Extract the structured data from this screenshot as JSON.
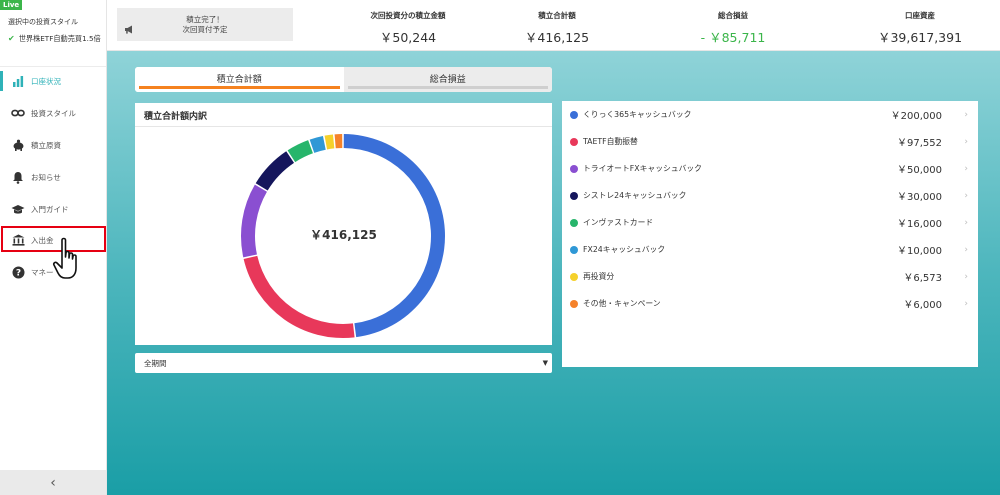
{
  "sidebar": {
    "live_badge": "Live",
    "selected_style_caption": "選択中の投資スタイル",
    "selected_style_name": "世界株ETF自動売買1.5倍",
    "collapse_icon": "chevron-left-icon",
    "items": [
      {
        "label": "口座状況",
        "icon": "bar-chart-icon",
        "active": true
      },
      {
        "label": "投資スタイル",
        "icon": "infinity-icon",
        "active": false
      },
      {
        "label": "積立原資",
        "icon": "piggy-bank-icon",
        "active": false
      },
      {
        "label": "お知らせ",
        "icon": "bell-icon",
        "active": false
      },
      {
        "label": "入門ガイド",
        "icon": "graduation-cap-icon",
        "active": false
      },
      {
        "label": "入出金",
        "icon": "bank-icon",
        "active": false
      },
      {
        "label": "マネー",
        "icon": "help-circle-icon",
        "active": false
      }
    ]
  },
  "header": {
    "notice_line1": "積立完了！",
    "notice_line2": "次回買付予定",
    "next_investment_label": "次回投資分の積立金額",
    "next_investment_value": "￥50,244",
    "total_savings_label": "積立合計額",
    "total_savings_value": "￥416,125",
    "total_pnl_label": "総合損益",
    "total_pnl_value": "- ￥85,711",
    "account_assets_label": "口座資産",
    "account_assets_value": "￥39,617,391"
  },
  "tabs": {
    "total_savings": "積立合計額",
    "total_pnl": "総合損益"
  },
  "chart_card": {
    "title": "積立合計額内訳",
    "center_value": "￥416,125"
  },
  "period_select": {
    "value": "全期間"
  },
  "chart_data": {
    "type": "pie",
    "categories": [
      "くりっく365キャッシュバック",
      "TAETF自動振替",
      "トライオートFXキャッシュバック",
      "シストレ24キャッシュバック",
      "インヴァストカード",
      "FX24キャッシュバック",
      "再投資分",
      "その他・キャンペーン"
    ],
    "values": [
      200000,
      97552,
      50000,
      30000,
      16000,
      10000,
      6573,
      6000
    ],
    "colors": [
      "#3a6fd8",
      "#e8385a",
      "#8a4fd1",
      "#15165c",
      "#27b56b",
      "#2f98d6",
      "#f5d12b",
      "#f5822a"
    ]
  },
  "breakdown": [
    {
      "name": "くりっく365キャッシュバック",
      "amount": "￥200,000",
      "color": "#3a6fd8"
    },
    {
      "name": "TAETF自動振替",
      "amount": "￥97,552",
      "color": "#e8385a"
    },
    {
      "name": "トライオートFXキャッシュバック",
      "amount": "￥50,000",
      "color": "#8a4fd1"
    },
    {
      "name": "シストレ24キャッシュバック",
      "amount": "￥30,000",
      "color": "#15165c"
    },
    {
      "name": "インヴァストカード",
      "amount": "￥16,000",
      "color": "#27b56b"
    },
    {
      "name": "FX24キャッシュバック",
      "amount": "￥10,000",
      "color": "#2f98d6"
    },
    {
      "name": "再投資分",
      "amount": "￥6,573",
      "color": "#f5d12b"
    },
    {
      "name": "その他・キャンペーン",
      "amount": "￥6,000",
      "color": "#f5822a"
    }
  ]
}
